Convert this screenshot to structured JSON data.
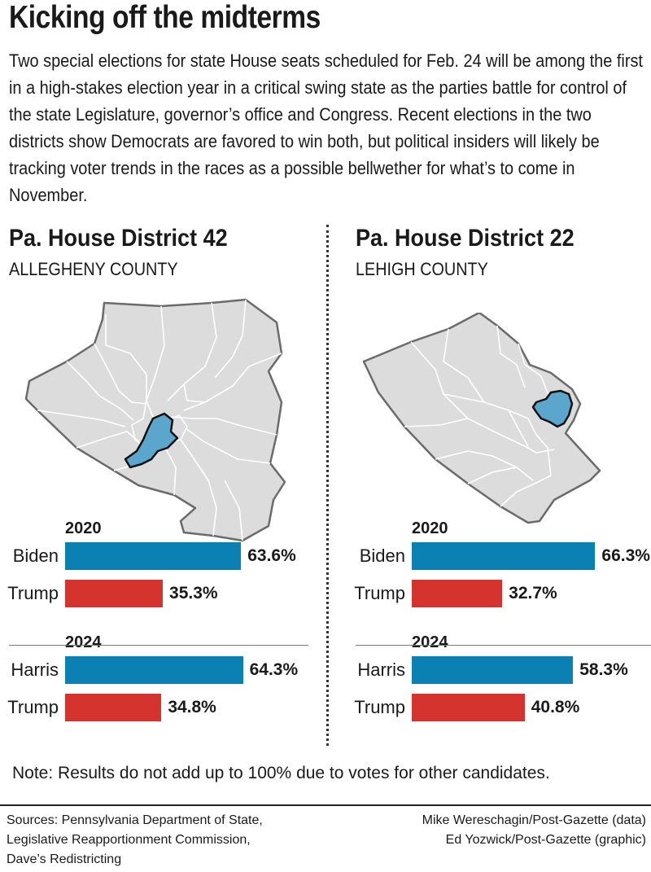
{
  "title": "Kicking off the midterms",
  "intro": "Two special elections for state House seats scheduled for Feb. 24 will be among the first in a high-stakes election year in a critical swing state as the parties battle for control of the state Legislature, governor’s office and Congress. Recent elections in the two districts show Democrats are favored to win both, but political insiders will likely be tracking voter trends in the races as a possible bellwether for what’s to come in November.",
  "colors": {
    "democrat": "#0b81b3",
    "republican": "#d5332e",
    "map_fill": "#dcdcdc",
    "district_fill": "#5aa6cc"
  },
  "chart_data": [
    {
      "type": "bar",
      "title": "Pa. House District 42",
      "subtitle": "ALLEGHENY COUNTY",
      "xlim": [
        0,
        100
      ],
      "groups": [
        {
          "year": "2020",
          "bars": [
            {
              "label": "Biden",
              "party": "democrat",
              "value": 63.6,
              "display": "63.6%"
            },
            {
              "label": "Trump",
              "party": "republican",
              "value": 35.3,
              "display": "35.3%"
            }
          ]
        },
        {
          "year": "2024",
          "bars": [
            {
              "label": "Harris",
              "party": "democrat",
              "value": 64.3,
              "display": "64.3%"
            },
            {
              "label": "Trump",
              "party": "republican",
              "value": 34.8,
              "display": "34.8%"
            }
          ]
        }
      ]
    },
    {
      "type": "bar",
      "title": "Pa. House District 22",
      "subtitle": "LEHIGH COUNTY",
      "xlim": [
        0,
        100
      ],
      "groups": [
        {
          "year": "2020",
          "bars": [
            {
              "label": "Biden",
              "party": "democrat",
              "value": 66.3,
              "display": "66.3%"
            },
            {
              "label": "Trump",
              "party": "republican",
              "value": 32.7,
              "display": "32.7%"
            }
          ]
        },
        {
          "year": "2024",
          "bars": [
            {
              "label": "Harris",
              "party": "democrat",
              "value": 58.3,
              "display": "58.3%"
            },
            {
              "label": "Trump",
              "party": "republican",
              "value": 40.8,
              "display": "40.8%"
            }
          ]
        }
      ]
    }
  ],
  "note": "Note: Results do not add up to 100% due to votes for other candidates.",
  "sources": [
    "Sources: Pennsylvania Department of State,",
    "Legislative Reapportionment Commission,",
    "Dave’s Redistricting"
  ],
  "credits": [
    "Mike Wereschagin/Post-Gazette (data)",
    "Ed Yozwick/Post-Gazette (graphic)"
  ]
}
